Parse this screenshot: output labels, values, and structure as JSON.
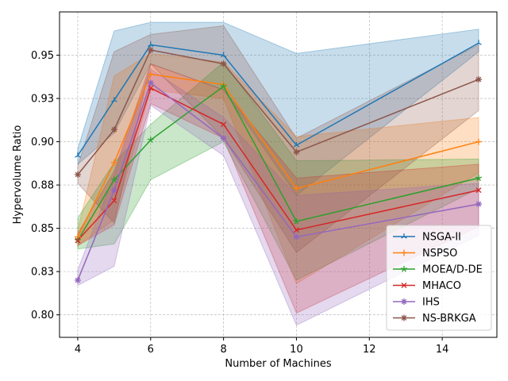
{
  "chart_data": {
    "type": "line",
    "title": "",
    "xlabel": "Number of Machines",
    "ylabel": "Hypervolume Ratio",
    "x": [
      4,
      5,
      6,
      8,
      10,
      15
    ],
    "xlim": [
      3.5,
      15.5
    ],
    "ylim": [
      0.787,
      0.975
    ],
    "x_ticks": [
      4,
      6,
      8,
      10,
      12,
      14
    ],
    "x_tick_labels": [
      "4",
      "6",
      "8",
      "10",
      "12",
      "14"
    ],
    "y_ticks": [
      0.8,
      0.825,
      0.85,
      0.875,
      0.9,
      0.925,
      0.95
    ],
    "y_tick_labels": [
      "0.80",
      "0.83",
      "0.85",
      "0.88",
      "0.90",
      "0.93",
      "0.95"
    ],
    "grid": true,
    "legend_position": "lower right",
    "series": [
      {
        "name": "NSGA-II",
        "color": "#1f77b4",
        "marker": "tri",
        "values": [
          0.892,
          0.924,
          0.956,
          0.95,
          0.898,
          0.957
        ],
        "lower": [
          0.887,
          0.905,
          0.945,
          0.93,
          0.869,
          0.952
        ],
        "upper": [
          0.896,
          0.964,
          0.969,
          0.969,
          0.951,
          0.965
        ]
      },
      {
        "name": "NSPSO",
        "color": "#ff7f0e",
        "marker": "plus",
        "values": [
          0.845,
          0.888,
          0.939,
          0.933,
          0.873,
          0.9
        ],
        "lower": [
          0.84,
          0.855,
          0.93,
          0.925,
          0.818,
          0.882
        ],
        "upper": [
          0.849,
          0.938,
          0.951,
          0.946,
          0.903,
          0.914
        ]
      },
      {
        "name": "MOEA/D-DE",
        "color": "#2ca02c",
        "marker": "star",
        "values": [
          0.843,
          0.878,
          0.901,
          0.932,
          0.854,
          0.879
        ],
        "lower": [
          0.838,
          0.841,
          0.878,
          0.9,
          0.82,
          0.873
        ],
        "upper": [
          0.856,
          0.888,
          0.91,
          0.946,
          0.889,
          0.89
        ]
      },
      {
        "name": "MHACO",
        "color": "#d62728",
        "marker": "x",
        "values": [
          0.843,
          0.866,
          0.931,
          0.91,
          0.849,
          0.872
        ],
        "lower": [
          0.84,
          0.852,
          0.922,
          0.902,
          0.801,
          0.851
        ],
        "upper": [
          0.847,
          0.883,
          0.945,
          0.93,
          0.879,
          0.887
        ]
      },
      {
        "name": "IHS",
        "color": "#9467bd",
        "marker": "asterisk",
        "values": [
          0.82,
          0.872,
          0.934,
          0.902,
          0.845,
          0.864
        ],
        "lower": [
          0.817,
          0.828,
          0.921,
          0.892,
          0.794,
          0.846
        ],
        "upper": [
          0.826,
          0.881,
          0.942,
          0.914,
          0.869,
          0.876
        ]
      },
      {
        "name": "NS-BRKGA",
        "color": "#8c564b",
        "marker": "asterisk",
        "values": [
          0.881,
          0.907,
          0.953,
          0.945,
          0.894,
          0.936
        ],
        "lower": [
          0.876,
          0.853,
          0.945,
          0.902,
          0.836,
          0.918
        ],
        "upper": [
          0.886,
          0.952,
          0.962,
          0.967,
          0.902,
          0.956
        ]
      }
    ]
  }
}
